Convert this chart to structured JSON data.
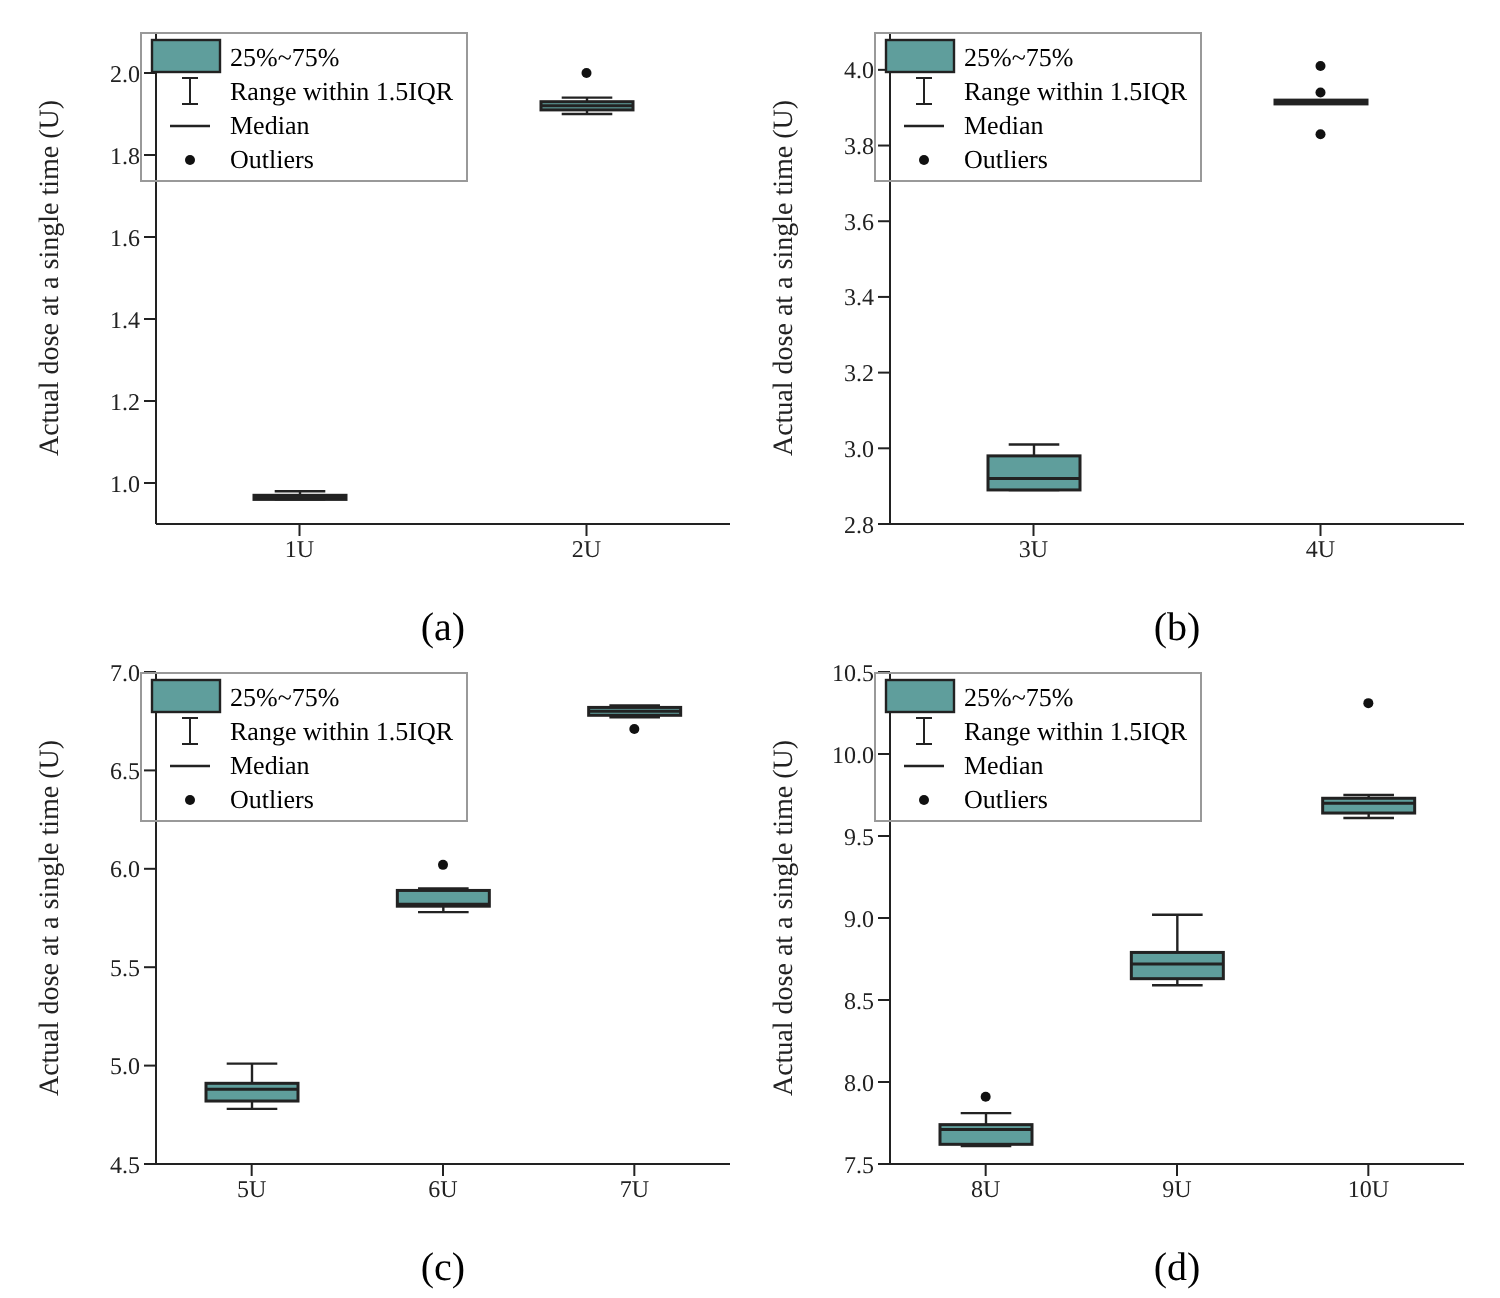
{
  "chart_data": [
    {
      "type": "box",
      "xlabel": "(a)",
      "ylabel": "Actual dose at a single time (U)",
      "categories": [
        "1U",
        "2U"
      ],
      "ylim": [
        0.9,
        2.1
      ],
      "yticks": [
        {
          "value": 1.0,
          "label": "1.0"
        },
        1.2,
        1.4,
        1.6,
        1.8,
        {
          "value": 2.0,
          "label": "2.0"
        }
      ],
      "legend": "top left",
      "annotations": [
        "Range within 1.5IQR",
        "Median",
        "Outliers"
      ],
      "series": [
        {
          "name": "25%~75%",
          "color": "#5f9e9c",
          "boxes": [
            {
              "low": 0.96,
              "q1": 0.96,
              "median": 0.965,
              "q3": 0.97,
              "high": 0.98
            },
            {
              "low": 1.9,
              "q1": 1.91,
              "median": 1.92,
              "q3": 1.93,
              "high": 1.94,
              "outliers": [
                2.0
              ]
            }
          ]
        }
      ]
    },
    {
      "type": "box",
      "xlabel": "(b)",
      "ylabel": "Actual dose at a single time (U)",
      "categories": [
        "3U",
        "4U"
      ],
      "ylim": [
        2.8,
        4.1
      ],
      "yticks": [
        2.8,
        {
          "value": 3.0,
          "label": "3.0"
        },
        3.2,
        3.4,
        3.6,
        3.8,
        {
          "value": 4.0,
          "label": "4.0"
        }
      ],
      "legend": "top left",
      "annotations": [
        "Range within 1.5IQR",
        "Median",
        "Outliers"
      ],
      "series": [
        {
          "name": "25%~75%",
          "color": "#5f9e9c",
          "boxes": [
            {
              "low": 2.89,
              "q1": 2.89,
              "median": 2.92,
              "q3": 2.98,
              "high": 3.01
            },
            {
              "low": 3.91,
              "q1": 3.91,
              "median": 3.915,
              "q3": 3.92,
              "high": 3.92,
              "outliers": [
                4.01,
                3.94,
                3.83
              ]
            }
          ]
        }
      ]
    },
    {
      "type": "box",
      "xlabel": "(c)",
      "ylabel": "Actual dose at a single time (U)",
      "categories": [
        "5U",
        "6U",
        "7U"
      ],
      "ylim": [
        4.5,
        7.0
      ],
      "yticks": [
        4.5,
        {
          "value": 5.0,
          "label": "5.0"
        },
        5.5,
        {
          "value": 6.0,
          "label": "6.0"
        },
        6.5,
        {
          "value": 7.0,
          "label": "7.0"
        }
      ],
      "legend": "top left",
      "annotations": [
        "Range within 1.5IQR",
        "Median",
        "Outliers"
      ],
      "series": [
        {
          "name": "25%~75%",
          "color": "#5f9e9c",
          "boxes": [
            {
              "low": 4.78,
              "q1": 4.82,
              "median": 4.88,
              "q3": 4.91,
              "high": 5.01
            },
            {
              "low": 5.78,
              "q1": 5.81,
              "median": 5.82,
              "q3": 5.89,
              "high": 5.9,
              "outliers": [
                6.02
              ]
            },
            {
              "low": 6.77,
              "q1": 6.78,
              "median": 6.8,
              "q3": 6.82,
              "high": 6.83,
              "outliers": [
                6.71
              ]
            }
          ]
        }
      ]
    },
    {
      "type": "box",
      "xlabel": "(d)",
      "ylabel": "Actual dose at a single time (U)",
      "categories": [
        "8U",
        "9U",
        "10U"
      ],
      "ylim": [
        7.5,
        10.5
      ],
      "yticks": [
        7.5,
        {
          "value": 8.0,
          "label": "8.0"
        },
        8.5,
        {
          "value": 9.0,
          "label": "9.0"
        },
        9.5,
        {
          "value": 10.0,
          "label": "10.0"
        },
        10.5
      ],
      "legend": "top left",
      "annotations": [
        "Range within 1.5IQR",
        "Median",
        "Outliers"
      ],
      "series": [
        {
          "name": "25%~75%",
          "color": "#5f9e9c",
          "boxes": [
            {
              "low": 7.61,
              "q1": 7.62,
              "median": 7.71,
              "q3": 7.74,
              "high": 7.81,
              "outliers": [
                7.91
              ]
            },
            {
              "low": 8.59,
              "q1": 8.63,
              "median": 8.72,
              "q3": 8.79,
              "high": 9.02
            },
            {
              "low": 9.61,
              "q1": 9.64,
              "median": 9.7,
              "q3": 9.73,
              "high": 9.75,
              "outliers": [
                10.31
              ]
            }
          ]
        }
      ]
    }
  ]
}
